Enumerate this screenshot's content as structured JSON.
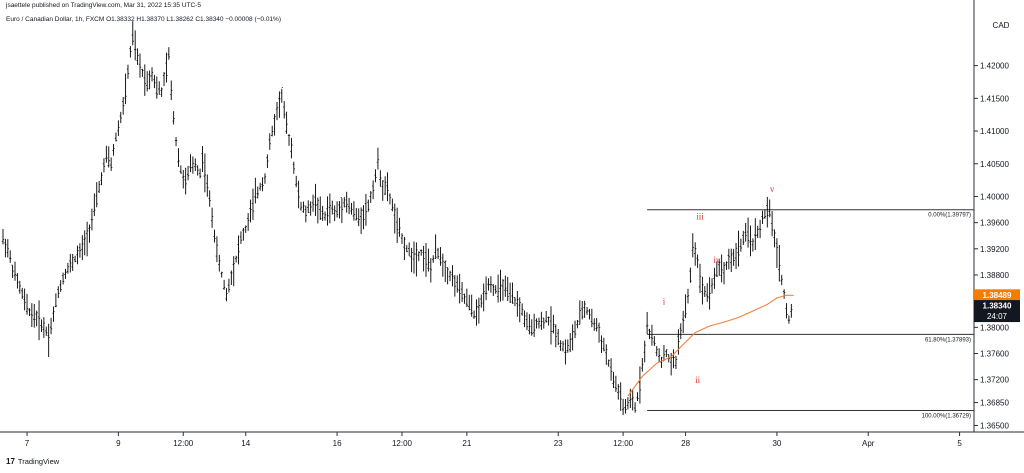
{
  "header": {
    "published": "jsaettele published on TradingView.com, Mar 31, 2022 15:35 UTC-5",
    "symbol_info": "Euro / Canadian Dollar, 1h, FXCM  O1.38332  H1.38370  L1.38262  C1.38340  −0.00008 (−0.01%)"
  },
  "footer": {
    "logo_glyph": "17",
    "brand": "TradingView"
  },
  "colors": {
    "background": "#ffffff",
    "candles": "#000000",
    "moving_average": "#f0823c",
    "wave_labels": "#e53935",
    "last_price_bg": "#131722",
    "ma_price_bg": "#f57c00",
    "fib_lines": "#333333",
    "axis_text": "#131722"
  },
  "chart_data": {
    "type": "line",
    "title": "",
    "currency_label": "CAD",
    "ylim": [
      1.364,
      1.4285
    ],
    "y_ticks": [
      1.42,
      1.415,
      1.41,
      1.405,
      1.4,
      1.396,
      1.392,
      1.388,
      1.38,
      1.376,
      1.372,
      1.3685,
      1.365
    ],
    "y_tick_labels": [
      "1.42000",
      "1.41500",
      "1.41000",
      "1.40500",
      "1.40000",
      "1.39600",
      "1.39200",
      "1.38800",
      "1.38000",
      "1.37600",
      "1.37200",
      "1.36850",
      "1.36500"
    ],
    "x_range": [
      0,
      404
    ],
    "x_ticks": [
      {
        "x": 10,
        "label": "7"
      },
      {
        "x": 48,
        "label": "9"
      },
      {
        "x": 75,
        "label": "12:00"
      },
      {
        "x": 101,
        "label": "14"
      },
      {
        "x": 139,
        "label": "16"
      },
      {
        "x": 166,
        "label": "12:00"
      },
      {
        "x": 193,
        "label": "21"
      },
      {
        "x": 231,
        "label": "23"
      },
      {
        "x": 258,
        "label": "12:00"
      },
      {
        "x": 284,
        "label": "28"
      },
      {
        "x": 322,
        "label": "30"
      },
      {
        "x": 360,
        "label": "Apr"
      },
      {
        "x": 398,
        "label": "5"
      }
    ],
    "price_path": [
      [
        0,
        1.3935
      ],
      [
        2,
        1.392
      ],
      [
        4,
        1.389
      ],
      [
        6,
        1.387
      ],
      [
        8,
        1.385
      ],
      [
        10,
        1.383
      ],
      [
        12,
        1.382
      ],
      [
        14,
        1.3815
      ],
      [
        16,
        1.3805
      ],
      [
        18,
        1.3795
      ],
      [
        19,
        1.3785
      ],
      [
        21,
        1.382
      ],
      [
        23,
        1.3855
      ],
      [
        26,
        1.3885
      ],
      [
        30,
        1.3905
      ],
      [
        33,
        1.392
      ],
      [
        36,
        1.395
      ],
      [
        38,
        1.398
      ],
      [
        41,
        1.403
      ],
      [
        43,
        1.406
      ],
      [
        45,
        1.405
      ],
      [
        47,
        1.409
      ],
      [
        49,
        1.412
      ],
      [
        51,
        1.416
      ],
      [
        53,
        1.422
      ],
      [
        54,
        1.4245
      ],
      [
        56,
        1.421
      ],
      [
        58,
        1.419
      ],
      [
        60,
        1.4175
      ],
      [
        62,
        1.419
      ],
      [
        64,
        1.4165
      ],
      [
        66,
        1.416
      ],
      [
        68,
        1.4195
      ],
      [
        69,
        1.4215
      ],
      [
        70,
        1.416
      ],
      [
        72,
        1.4085
      ],
      [
        74,
        1.404
      ],
      [
        76,
        1.402
      ],
      [
        78,
        1.4045
      ],
      [
        80,
        1.405
      ],
      [
        82,
        1.4035
      ],
      [
        83,
        1.406
      ],
      [
        85,
        1.4015
      ],
      [
        87,
        1.397
      ],
      [
        89,
        1.3915
      ],
      [
        91,
        1.388
      ],
      [
        93,
        1.385
      ],
      [
        95,
        1.388
      ],
      [
        97,
        1.3905
      ],
      [
        99,
        1.3935
      ],
      [
        101,
        1.395
      ],
      [
        103,
        1.3975
      ],
      [
        105,
        1.4
      ],
      [
        107,
        1.4015
      ],
      [
        109,
        1.403
      ],
      [
        111,
        1.408
      ],
      [
        113,
        1.4115
      ],
      [
        115,
        1.4145
      ],
      [
        116,
        1.4155
      ],
      [
        118,
        1.4105
      ],
      [
        120,
        1.4075
      ],
      [
        122,
        1.402
      ],
      [
        124,
        1.3985
      ],
      [
        126,
        1.3975
      ],
      [
        128,
        1.3985
      ],
      [
        130,
        1.3995
      ],
      [
        132,
        1.3975
      ],
      [
        134,
        1.397
      ],
      [
        136,
        1.3985
      ],
      [
        138,
        1.3975
      ],
      [
        140,
        1.398
      ],
      [
        142,
        1.3995
      ],
      [
        144,
        1.3985
      ],
      [
        146,
        1.3975
      ],
      [
        148,
        1.3965
      ],
      [
        150,
        1.3975
      ],
      [
        152,
        1.3985
      ],
      [
        154,
        1.4015
      ],
      [
        156,
        1.405
      ],
      [
        158,
        1.4015
      ],
      [
        160,
        1.401
      ],
      [
        162,
        1.3985
      ],
      [
        164,
        1.3955
      ],
      [
        166,
        1.3935
      ],
      [
        168,
        1.392
      ],
      [
        170,
        1.391
      ],
      [
        172,
        1.391
      ],
      [
        174,
        1.3915
      ],
      [
        176,
        1.3905
      ],
      [
        178,
        1.389
      ],
      [
        180,
        1.3915
      ],
      [
        182,
        1.391
      ],
      [
        184,
        1.389
      ],
      [
        186,
        1.388
      ],
      [
        188,
        1.387
      ],
      [
        190,
        1.3855
      ],
      [
        192,
        1.3845
      ],
      [
        194,
        1.3835
      ],
      [
        196,
        1.382
      ],
      [
        198,
        1.3825
      ],
      [
        200,
        1.385
      ],
      [
        202,
        1.387
      ],
      [
        204,
        1.386
      ],
      [
        206,
        1.3855
      ],
      [
        208,
        1.3865
      ],
      [
        210,
        1.385
      ],
      [
        212,
        1.3845
      ],
      [
        214,
        1.3835
      ],
      [
        216,
        1.3825
      ],
      [
        218,
        1.3805
      ],
      [
        220,
        1.3795
      ],
      [
        222,
        1.381
      ],
      [
        224,
        1.3805
      ],
      [
        226,
        1.3815
      ],
      [
        228,
        1.3805
      ],
      [
        230,
        1.3795
      ],
      [
        232,
        1.3775
      ],
      [
        234,
        1.3765
      ],
      [
        236,
        1.3775
      ],
      [
        238,
        1.3795
      ],
      [
        240,
        1.3815
      ],
      [
        242,
        1.383
      ],
      [
        244,
        1.382
      ],
      [
        246,
        1.3805
      ],
      [
        248,
        1.3795
      ],
      [
        249,
        1.378
      ],
      [
        251,
        1.376
      ],
      [
        253,
        1.373
      ],
      [
        255,
        1.371
      ],
      [
        257,
        1.3695
      ],
      [
        258,
        1.3675
      ],
      [
        260,
        1.368
      ],
      [
        262,
        1.369
      ],
      [
        263,
        1.3675
      ],
      [
        265,
        1.3715
      ],
      [
        267,
        1.377
      ],
      [
        268,
        1.38
      ],
      [
        270,
        1.3785
      ],
      [
        272,
        1.3765
      ],
      [
        274,
        1.375
      ],
      [
        276,
        1.376
      ],
      [
        278,
        1.3745
      ],
      [
        280,
        1.3748
      ],
      [
        281,
        1.378
      ],
      [
        283,
        1.381
      ],
      [
        285,
        1.3845
      ],
      [
        286,
        1.388
      ],
      [
        287,
        1.3925
      ],
      [
        289,
        1.3905
      ],
      [
        290,
        1.387
      ],
      [
        292,
        1.3855
      ],
      [
        294,
        1.3855
      ],
      [
        296,
        1.3875
      ],
      [
        298,
        1.3895
      ],
      [
        300,
        1.3885
      ],
      [
        302,
        1.3905
      ],
      [
        304,
        1.3905
      ],
      [
        306,
        1.392
      ],
      [
        308,
        1.3935
      ],
      [
        310,
        1.394
      ],
      [
        312,
        1.393
      ],
      [
        314,
        1.3945
      ],
      [
        316,
        1.3965
      ],
      [
        318,
        1.3978
      ],
      [
        319,
        1.3975
      ],
      [
        320,
        1.3955
      ],
      [
        322,
        1.392
      ],
      [
        323,
        1.3895
      ],
      [
        324,
        1.3875
      ],
      [
        325,
        1.385
      ],
      [
        326,
        1.3825
      ],
      [
        327,
        1.381
      ],
      [
        328,
        1.3825
      ],
      [
        329,
        1.3834
      ]
    ],
    "series": [
      {
        "name": "",
        "x": [
          260,
          266,
          272,
          278,
          282,
          288,
          294,
          300,
          306,
          312,
          318,
          322,
          326,
          329
        ],
        "values": [
          1.3695,
          1.3725,
          1.3745,
          1.3755,
          1.377,
          1.3792,
          1.3802,
          1.3808,
          1.3815,
          1.3825,
          1.3835,
          1.3845,
          1.3849,
          1.3849
        ]
      }
    ],
    "fib_levels": [
      {
        "label": "0.00%(1.39797)",
        "value": 1.39797,
        "x_start": 268,
        "x_end": 404
      },
      {
        "label": "61.80%(1.37893)",
        "value": 1.37893,
        "x_start": 268,
        "x_end": 404
      },
      {
        "label": "100.00%(1.36729)",
        "value": 1.36729,
        "x_start": 268,
        "x_end": 404
      }
    ],
    "annotations": [
      {
        "text": "i",
        "x": 275,
        "y": 1.3835
      },
      {
        "text": "ii",
        "x": 289,
        "y": 1.3715
      },
      {
        "text": "iii",
        "x": 290,
        "y": 1.3965
      },
      {
        "text": "iv",
        "x": 297,
        "y": 1.3898
      },
      {
        "text": "v",
        "x": 320,
        "y": 1.4007
      }
    ],
    "price_labels": [
      {
        "text": "1.38489",
        "value": 1.38489,
        "kind": "ma"
      },
      {
        "text": "1.38340",
        "value": 1.3834,
        "kind": "last",
        "sub": "24:07"
      }
    ],
    "grid": false,
    "legend": "none"
  }
}
